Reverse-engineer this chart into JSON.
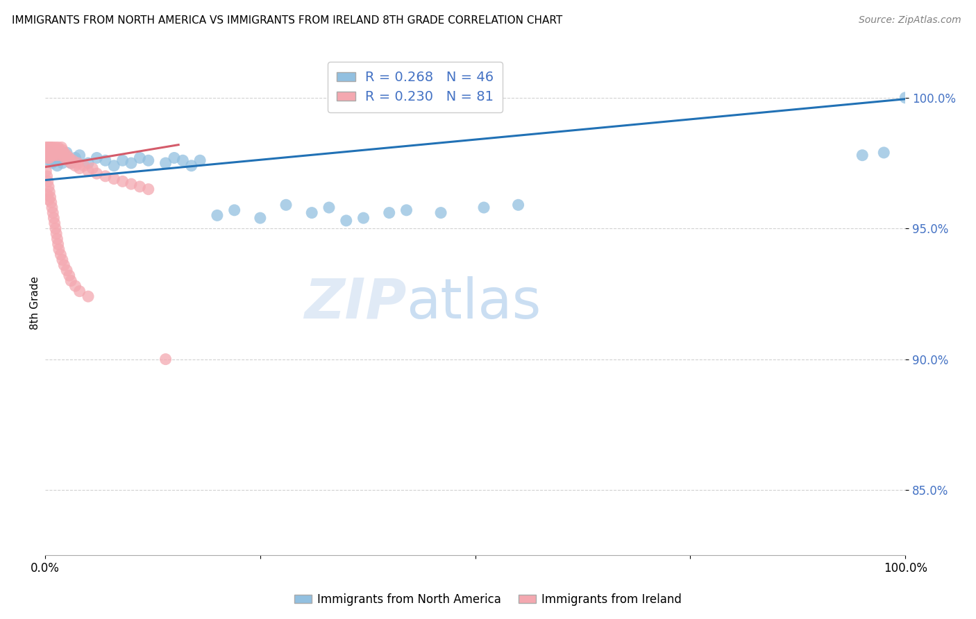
{
  "title": "IMMIGRANTS FROM NORTH AMERICA VS IMMIGRANTS FROM IRELAND 8TH GRADE CORRELATION CHART",
  "source": "Source: ZipAtlas.com",
  "ylabel": "8th Grade",
  "ytick_vals": [
    0.85,
    0.9,
    0.95,
    1.0
  ],
  "ytick_labels": [
    "85.0%",
    "90.0%",
    "95.0%",
    "100.0%"
  ],
  "xlim": [
    0.0,
    1.0
  ],
  "ylim": [
    0.825,
    1.018
  ],
  "legend_blue_label": "R = 0.268   N = 46",
  "legend_pink_label": "R = 0.230   N = 81",
  "blue_color": "#92C0E0",
  "pink_color": "#F4A8B0",
  "blue_line_color": "#2171b5",
  "pink_line_color": "#d45b6a",
  "grid_color": "#cccccc",
  "blue_scatter_x": [
    0.001,
    0.003,
    0.004,
    0.006,
    0.007,
    0.008,
    0.01,
    0.012,
    0.014,
    0.016,
    0.018,
    0.02,
    0.022,
    0.025,
    0.03,
    0.035,
    0.04,
    0.05,
    0.06,
    0.07,
    0.08,
    0.09,
    0.1,
    0.11,
    0.12,
    0.14,
    0.15,
    0.16,
    0.17,
    0.18,
    0.2,
    0.22,
    0.25,
    0.28,
    0.31,
    0.33,
    0.35,
    0.37,
    0.4,
    0.42,
    0.46,
    0.51,
    0.55,
    0.95,
    0.975,
    1.0
  ],
  "blue_scatter_y": [
    0.98,
    0.978,
    0.976,
    0.979,
    0.977,
    0.975,
    0.978,
    0.976,
    0.974,
    0.976,
    0.978,
    0.975,
    0.977,
    0.979,
    0.975,
    0.977,
    0.978,
    0.975,
    0.977,
    0.976,
    0.974,
    0.976,
    0.975,
    0.977,
    0.976,
    0.975,
    0.977,
    0.976,
    0.974,
    0.976,
    0.955,
    0.957,
    0.954,
    0.959,
    0.956,
    0.958,
    0.953,
    0.954,
    0.956,
    0.957,
    0.956,
    0.958,
    0.959,
    0.978,
    0.979,
    1.0
  ],
  "pink_scatter_x": [
    0.001,
    0.002,
    0.002,
    0.003,
    0.003,
    0.003,
    0.004,
    0.004,
    0.005,
    0.005,
    0.005,
    0.006,
    0.006,
    0.007,
    0.007,
    0.008,
    0.008,
    0.009,
    0.009,
    0.01,
    0.01,
    0.011,
    0.012,
    0.013,
    0.013,
    0.014,
    0.015,
    0.016,
    0.017,
    0.018,
    0.019,
    0.02,
    0.021,
    0.022,
    0.023,
    0.025,
    0.027,
    0.028,
    0.03,
    0.032,
    0.035,
    0.038,
    0.04,
    0.045,
    0.05,
    0.055,
    0.06,
    0.07,
    0.08,
    0.09,
    0.1,
    0.11,
    0.12,
    0.001,
    0.002,
    0.003,
    0.004,
    0.005,
    0.006,
    0.007,
    0.008,
    0.009,
    0.01,
    0.011,
    0.012,
    0.013,
    0.014,
    0.015,
    0.016,
    0.018,
    0.02,
    0.022,
    0.025,
    0.028,
    0.03,
    0.035,
    0.04,
    0.05,
    0.002,
    0.004,
    0.14
  ],
  "pink_scatter_y": [
    0.981,
    0.98,
    0.979,
    0.981,
    0.979,
    0.977,
    0.98,
    0.978,
    0.981,
    0.979,
    0.977,
    0.98,
    0.978,
    0.981,
    0.979,
    0.98,
    0.978,
    0.981,
    0.979,
    0.98,
    0.978,
    0.979,
    0.981,
    0.98,
    0.978,
    0.979,
    0.981,
    0.98,
    0.978,
    0.979,
    0.981,
    0.98,
    0.978,
    0.979,
    0.977,
    0.978,
    0.976,
    0.977,
    0.975,
    0.976,
    0.974,
    0.975,
    0.973,
    0.974,
    0.972,
    0.973,
    0.971,
    0.97,
    0.969,
    0.968,
    0.967,
    0.966,
    0.965,
    0.972,
    0.97,
    0.968,
    0.966,
    0.964,
    0.962,
    0.96,
    0.958,
    0.956,
    0.954,
    0.952,
    0.95,
    0.948,
    0.946,
    0.944,
    0.942,
    0.94,
    0.938,
    0.936,
    0.934,
    0.932,
    0.93,
    0.928,
    0.926,
    0.924,
    0.963,
    0.961,
    0.9
  ],
  "blue_line_x0": 0.0,
  "blue_line_x1": 1.0,
  "blue_line_y0": 0.9685,
  "blue_line_y1": 0.9995,
  "pink_line_x0": 0.0,
  "pink_line_x1": 0.155,
  "pink_line_y0": 0.9735,
  "pink_line_y1": 0.982,
  "bottom_legend_blue": "Immigrants from North America",
  "bottom_legend_pink": "Immigrants from Ireland"
}
